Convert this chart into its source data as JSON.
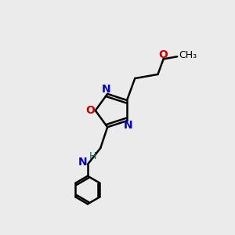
{
  "bg_color": "#ebebeb",
  "bond_color": "#000000",
  "N_color": "#0000cc",
  "O_color": "#cc0000",
  "NH_color": "#006666",
  "font_size": 10,
  "bond_width": 1.8,
  "figsize": [
    3.0,
    3.0
  ],
  "dpi": 100,
  "xlim": [
    0,
    10
  ],
  "ylim": [
    0,
    10
  ]
}
